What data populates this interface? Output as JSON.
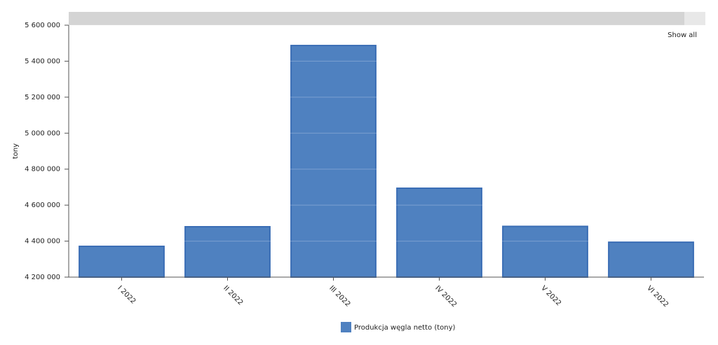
{
  "chart_data": {
    "type": "bar",
    "y_label": "tony",
    "categories": [
      "I 2022",
      "II 2022",
      "III 2022",
      "IV 2022",
      "V 2022",
      "VI 2022"
    ],
    "series": [
      {
        "name": "Produkcja węgla netto (tony)",
        "color": "#4f81c0",
        "values": [
          4371000,
          4480000,
          5487000,
          4694000,
          4482000,
          4394000
        ]
      }
    ],
    "ylim": [
      4200000,
      5600000
    ],
    "yticks": [
      {
        "value": 4200000,
        "label": "4 200 000"
      },
      {
        "value": 4400000,
        "label": "4 400 000"
      },
      {
        "value": 4600000,
        "label": "4 600 000"
      },
      {
        "value": 4800000,
        "label": "4 800 000"
      },
      {
        "value": 5000000,
        "label": "5 000 000"
      },
      {
        "value": 5200000,
        "label": "5 200 000"
      },
      {
        "value": 5400000,
        "label": "5 400 000"
      },
      {
        "value": 5600000,
        "label": "5 600 000"
      }
    ],
    "grid": true
  },
  "controls": {
    "show_all": "Show all"
  }
}
